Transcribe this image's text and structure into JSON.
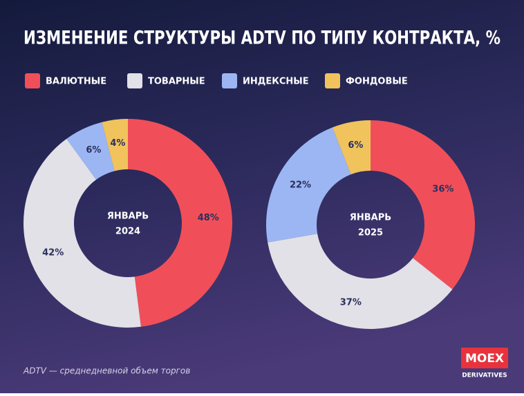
{
  "header": {
    "title": "ИЗМЕНЕНИЕ СТРУКТУРЫ ADTV ПО ТИПУ КОНТРАКТА, %"
  },
  "chart_data": [
    {
      "type": "pie",
      "center_label": [
        "ЯНВАРЬ",
        "2024"
      ],
      "categories": [
        "ВАЛЮТНЫЕ",
        "ТОВАРНЫЕ",
        "ИНДЕКСНЫЕ",
        "ФОНДОВЫЕ"
      ],
      "values": [
        48,
        42,
        6,
        4
      ],
      "value_labels": [
        "48%",
        "42%",
        "6%",
        "4%"
      ],
      "colors": [
        "#f04f59",
        "#e1e1e7",
        "#9cb6f4",
        "#f1c35c"
      ]
    },
    {
      "type": "pie",
      "center_label": [
        "ЯНВАРЬ",
        "2025"
      ],
      "categories": [
        "ВАЛЮТНЫЕ",
        "ТОВАРНЫЕ",
        "ИНДЕКСНЫЕ",
        "ФОНДОВЫЕ"
      ],
      "values": [
        36,
        37,
        22,
        6
      ],
      "value_labels": [
        "36%",
        "37%",
        "22%",
        "6%"
      ],
      "colors": [
        "#f04f59",
        "#e1e1e7",
        "#9cb6f4",
        "#f1c35c"
      ]
    }
  ],
  "footnote": "ADTV — среднедневной объем торгов",
  "logo": {
    "name": "MOEX",
    "subtitle": "DERIVATIVES"
  }
}
